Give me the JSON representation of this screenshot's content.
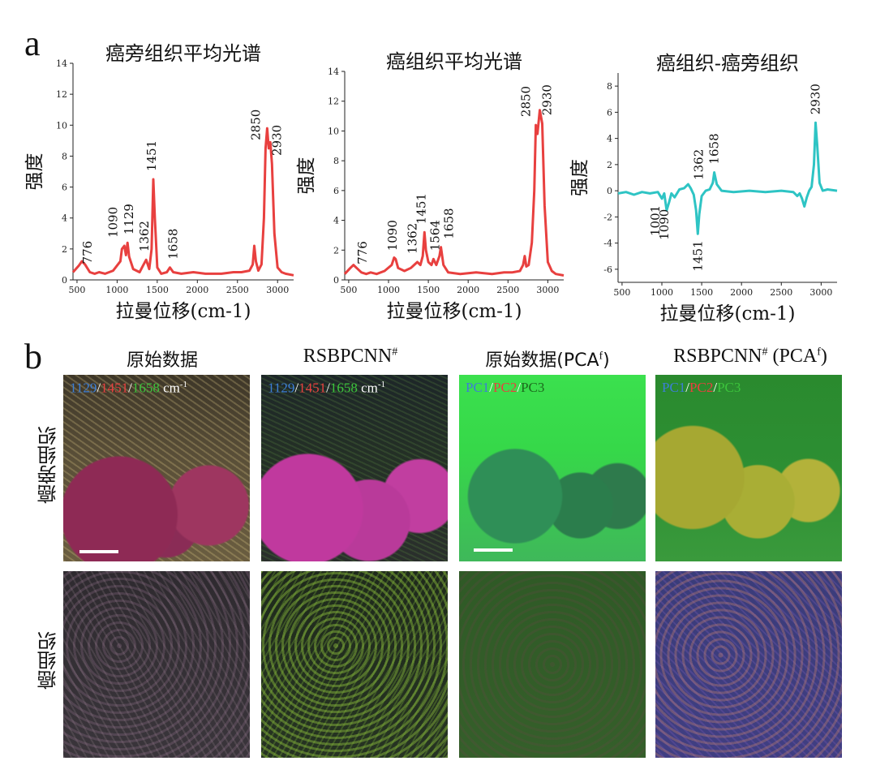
{
  "panel_a_label": "a",
  "panel_b_label": "b",
  "colors": {
    "paracancer_line": "#e8403f",
    "cancer_line": "#e8403f",
    "difference_line": "#2ec4c4"
  },
  "chart_data": [
    {
      "type": "line",
      "title": "癌旁组织平均光谱",
      "xlabel": "拉曼位移(cm-1)",
      "ylabel": "强度",
      "xlim": [
        450,
        3200
      ],
      "ylim": [
        0,
        14
      ],
      "xticks": [
        500,
        1000,
        1500,
        2000,
        2500,
        3000
      ],
      "yticks": [
        0,
        2,
        4,
        6,
        8,
        10,
        12,
        14
      ],
      "x": [
        450,
        520,
        560,
        600,
        660,
        720,
        776,
        850,
        950,
        1040,
        1060,
        1090,
        1110,
        1129,
        1150,
        1200,
        1280,
        1320,
        1362,
        1400,
        1430,
        1451,
        1470,
        1500,
        1550,
        1620,
        1658,
        1700,
        1800,
        1950,
        2100,
        2300,
        2450,
        2550,
        2650,
        2690,
        2710,
        2730,
        2760,
        2800,
        2830,
        2850,
        2870,
        2890,
        2910,
        2930,
        2960,
        3000,
        3050,
        3100,
        3200
      ],
      "y": [
        0.5,
        0.9,
        1.2,
        1.0,
        0.5,
        0.4,
        0.5,
        0.4,
        0.6,
        1.2,
        2.0,
        2.2,
        1.6,
        2.4,
        1.5,
        0.7,
        0.5,
        0.9,
        1.3,
        0.7,
        2.0,
        6.5,
        4.0,
        0.8,
        0.4,
        0.5,
        0.8,
        0.5,
        0.4,
        0.5,
        0.4,
        0.4,
        0.5,
        0.5,
        0.6,
        1.0,
        2.2,
        1.2,
        0.6,
        1.0,
        4.0,
        8.5,
        9.8,
        8.5,
        8.9,
        7.5,
        3.0,
        0.8,
        0.5,
        0.4,
        0.3
      ],
      "annotations": [
        "776",
        "1090",
        "1129",
        "1362",
        "1451",
        "1658",
        "2850",
        "2930"
      ]
    },
    {
      "type": "line",
      "title": "癌组织平均光谱",
      "xlabel": "拉曼位移(cm-1)",
      "ylabel": "强度",
      "xlim": [
        450,
        3200
      ],
      "ylim": [
        0,
        14
      ],
      "xticks": [
        500,
        1000,
        1500,
        2000,
        2500,
        3000
      ],
      "yticks": [
        0,
        2,
        4,
        6,
        8,
        10,
        12,
        14
      ],
      "x": [
        450,
        520,
        560,
        600,
        660,
        720,
        776,
        850,
        950,
        1040,
        1070,
        1090,
        1120,
        1200,
        1280,
        1362,
        1400,
        1430,
        1451,
        1470,
        1500,
        1540,
        1564,
        1600,
        1640,
        1658,
        1690,
        1750,
        1900,
        2100,
        2300,
        2450,
        2550,
        2650,
        2690,
        2710,
        2730,
        2760,
        2800,
        2830,
        2850,
        2870,
        2900,
        2930,
        2960,
        3000,
        3050,
        3100,
        3200
      ],
      "y": [
        0.4,
        0.8,
        1.0,
        0.8,
        0.5,
        0.4,
        0.5,
        0.4,
        0.6,
        1.0,
        1.5,
        1.4,
        0.8,
        0.6,
        0.8,
        1.2,
        1.0,
        1.6,
        3.2,
        2.0,
        1.2,
        1.0,
        1.4,
        1.0,
        1.6,
        2.2,
        1.0,
        0.5,
        0.4,
        0.5,
        0.4,
        0.5,
        0.5,
        0.6,
        1.0,
        1.6,
        0.9,
        1.0,
        2.5,
        6.0,
        10.4,
        9.8,
        11.4,
        10.5,
        5.0,
        1.2,
        0.6,
        0.4,
        0.3
      ],
      "annotations": [
        "776",
        "1090",
        "1362",
        "1451",
        "1564",
        "1658",
        "2850",
        "2930"
      ]
    },
    {
      "type": "line",
      "title": "癌组织-癌旁组织",
      "xlabel": "拉曼位移(cm-1)",
      "ylabel": "强度",
      "xlim": [
        450,
        3200
      ],
      "ylim": [
        -7,
        9
      ],
      "xticks": [
        500,
        1000,
        1500,
        2000,
        2500,
        3000
      ],
      "yticks": [
        -6,
        -4,
        -2,
        0,
        2,
        4,
        6,
        8
      ],
      "x": [
        450,
        550,
        650,
        750,
        850,
        950,
        1001,
        1030,
        1060,
        1090,
        1120,
        1160,
        1220,
        1280,
        1330,
        1362,
        1400,
        1430,
        1451,
        1470,
        1500,
        1550,
        1600,
        1640,
        1658,
        1690,
        1750,
        1900,
        2100,
        2300,
        2500,
        2650,
        2700,
        2730,
        2760,
        2790,
        2820,
        2850,
        2880,
        2910,
        2930,
        2950,
        2980,
        3020,
        3080,
        3200
      ],
      "y": [
        -0.2,
        -0.1,
        -0.3,
        -0.1,
        -0.2,
        -0.1,
        -0.6,
        -0.2,
        -1.5,
        -0.9,
        -0.2,
        -0.5,
        0.1,
        0.2,
        0.5,
        0.2,
        -0.3,
        -1.5,
        -3.3,
        -1.8,
        -0.4,
        0.0,
        0.1,
        0.6,
        1.4,
        0.5,
        0.0,
        -0.1,
        0.0,
        -0.1,
        0.0,
        -0.1,
        -0.4,
        -0.2,
        -0.6,
        -1.2,
        -0.5,
        0.0,
        0.3,
        2.0,
        5.2,
        3.5,
        0.6,
        0.0,
        0.1,
        0.0
      ],
      "annotations": [
        "1001",
        "1090",
        "1362",
        "1451",
        "1658",
        "2930"
      ]
    }
  ],
  "panel_b": {
    "columns": [
      {
        "title": "原始数据",
        "legend": [
          {
            "text": "1129",
            "color": "#3c7ed6"
          },
          {
            "text": "/",
            "color": "#ffffff"
          },
          {
            "text": "1451",
            "color": "#e8403f"
          },
          {
            "text": "/",
            "color": "#ffffff"
          },
          {
            "text": "1658",
            "color": "#3cc43c"
          },
          {
            "text": " cm",
            "color": "#ffffff"
          },
          {
            "text": "-1",
            "color": "#ffffff",
            "sup": true
          }
        ]
      },
      {
        "title": "RSBPCNN",
        "title_sup": "#",
        "legend": [
          {
            "text": "1129",
            "color": "#3c7ed6"
          },
          {
            "text": "/",
            "color": "#ffffff"
          },
          {
            "text": "1451",
            "color": "#e8403f"
          },
          {
            "text": "/",
            "color": "#ffffff"
          },
          {
            "text": "1658",
            "color": "#3cc43c"
          },
          {
            "text": " cm",
            "color": "#ffffff"
          },
          {
            "text": "-1",
            "color": "#ffffff",
            "sup": true
          }
        ]
      },
      {
        "title": "原始数据(PCA",
        "title_sup": "f",
        "title_tail": ")",
        "legend": [
          {
            "text": "PC1",
            "color": "#3c7ed6"
          },
          {
            "text": "/",
            "color": "#ffffff"
          },
          {
            "text": "PC2",
            "color": "#e8403f"
          },
          {
            "text": "/",
            "color": "#ffffff"
          },
          {
            "text": "PC3",
            "color": "#1d6a1d"
          }
        ]
      },
      {
        "title": "RSBPCNN",
        "title_sup": "#",
        "title_tail2": " (PCA",
        "title_sup2": "f",
        "title_tail": ")",
        "legend": [
          {
            "text": "PC1",
            "color": "#3c7ed6"
          },
          {
            "text": "/",
            "color": "#ffffff"
          },
          {
            "text": "PC2",
            "color": "#e8403f"
          },
          {
            "text": "/",
            "color": "#ffffff"
          },
          {
            "text": "PC3",
            "color": "#3cc43c"
          }
        ]
      }
    ],
    "rows": [
      "癌旁组织",
      "癌组织"
    ]
  }
}
